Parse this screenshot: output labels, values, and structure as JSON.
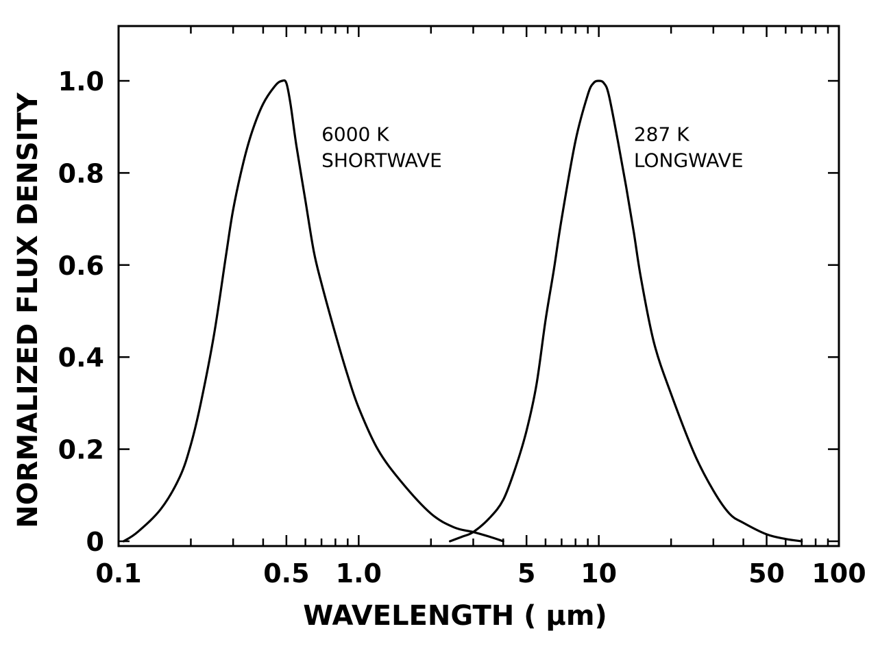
{
  "chart_data": {
    "type": "line",
    "title": "",
    "xlabel": "WAVELENGTH ( μm)",
    "ylabel": "NORMALIZED FLUX DENSITY",
    "xscale": "log",
    "xlim": [
      0.1,
      100
    ],
    "ylim": [
      0,
      1.1
    ],
    "grid": false,
    "x_tick_labels": [
      {
        "value": 0.1,
        "label": "0.1"
      },
      {
        "value": 0.5,
        "label": "0.5"
      },
      {
        "value": 1.0,
        "label": "1.0"
      },
      {
        "value": 5,
        "label": "5"
      },
      {
        "value": 10,
        "label": "10"
      },
      {
        "value": 50,
        "label": "50"
      },
      {
        "value": 100,
        "label": "100"
      }
    ],
    "y_tick_labels": [
      {
        "value": 0,
        "label": "0"
      },
      {
        "value": 0.2,
        "label": "0.2"
      },
      {
        "value": 0.4,
        "label": "0.4"
      },
      {
        "value": 0.6,
        "label": "0.6"
      },
      {
        "value": 0.8,
        "label": "0.8"
      },
      {
        "value": 1.0,
        "label": "1.0"
      }
    ],
    "series": [
      {
        "x": [
          0.105,
          0.12,
          0.15,
          0.18,
          0.2,
          0.22,
          0.25,
          0.28,
          0.3,
          0.33,
          0.36,
          0.4,
          0.45,
          0.48,
          0.5,
          0.52,
          0.55,
          0.6,
          0.65,
          0.7,
          0.8,
          0.9,
          1.0,
          1.2,
          1.5,
          2.0,
          2.5,
          3.0,
          3.5,
          4.0
        ],
        "values": [
          0.0,
          0.02,
          0.07,
          0.14,
          0.21,
          0.3,
          0.45,
          0.62,
          0.72,
          0.82,
          0.89,
          0.95,
          0.99,
          1.0,
          0.995,
          0.95,
          0.86,
          0.74,
          0.63,
          0.56,
          0.45,
          0.36,
          0.29,
          0.2,
          0.13,
          0.06,
          0.03,
          0.02,
          0.01,
          0.0
        ]
      },
      {
        "x": [
          2.4,
          2.7,
          3.0,
          3.5,
          4.0,
          4.5,
          5.0,
          5.5,
          6.0,
          6.5,
          7.0,
          8.0,
          9.0,
          9.5,
          10.0,
          10.5,
          11.0,
          12.0,
          13.0,
          14.0,
          15.0,
          17.0,
          20.0,
          25.0,
          30.0,
          35.0,
          40.0,
          50.0,
          60.0,
          70.0
        ],
        "values": [
          0.0,
          0.01,
          0.02,
          0.05,
          0.09,
          0.16,
          0.24,
          0.34,
          0.48,
          0.59,
          0.7,
          0.87,
          0.97,
          0.995,
          1.0,
          0.995,
          0.97,
          0.87,
          0.77,
          0.67,
          0.57,
          0.43,
          0.32,
          0.19,
          0.11,
          0.06,
          0.04,
          0.015,
          0.005,
          0.0
        ]
      }
    ],
    "annotations": [
      {
        "id": "shortwave",
        "x": 0.7,
        "y": 0.87,
        "lines": [
          "6000 K",
          "SHORTWAVE"
        ]
      },
      {
        "id": "longwave",
        "x": 14.0,
        "y": 0.87,
        "lines": [
          "287 K",
          "LONGWAVE"
        ]
      }
    ],
    "line_color": "#000000",
    "background_color": "#ffffff"
  }
}
